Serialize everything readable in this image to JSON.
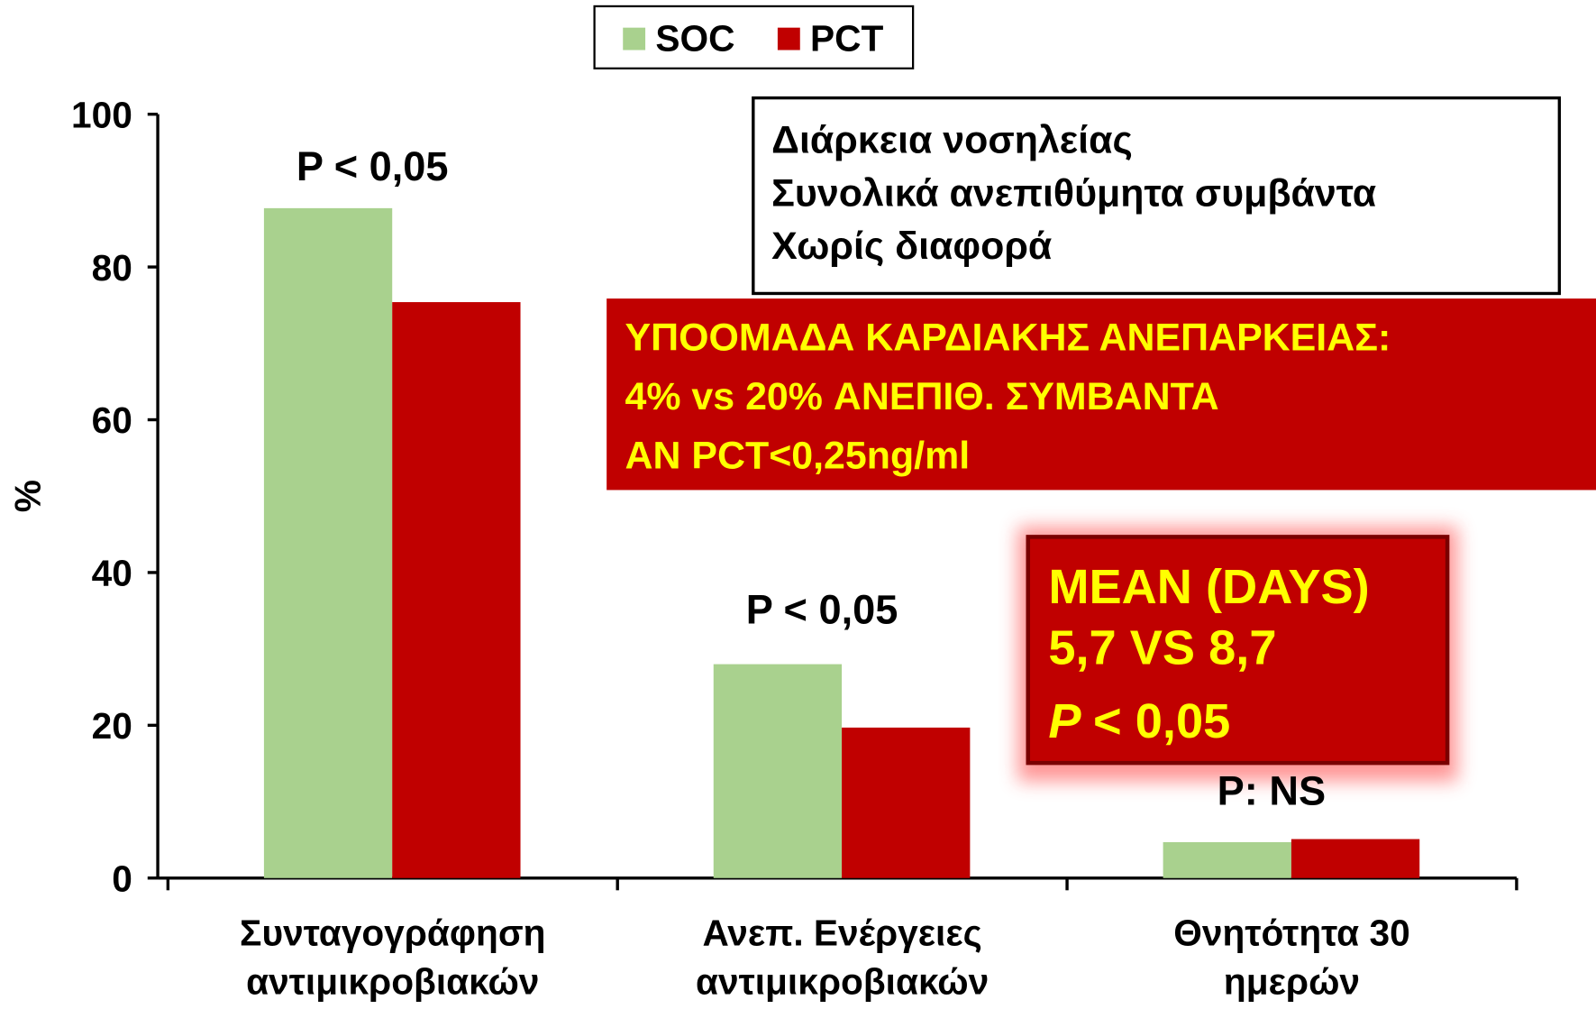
{
  "chart_data": {
    "type": "bar",
    "categories": [
      [
        "Συνταγογράφηση",
        "αντιμικροβιακών"
      ],
      [
        "Ανεπ. Ενέργειες",
        "αντιμικροβιακών"
      ],
      [
        "Θνητότητα 30",
        "ημερών"
      ]
    ],
    "series": [
      {
        "name": "SOC",
        "color": "#a9d18e",
        "values": [
          87.7,
          28,
          4.7
        ]
      },
      {
        "name": "PCT",
        "color": "#c00000",
        "values": [
          75.4,
          19.7,
          5.1
        ]
      }
    ],
    "y_label": "%",
    "ylim": [
      0,
      100
    ],
    "yticks": [
      0,
      20,
      40,
      60,
      80,
      100
    ],
    "annotations": [
      "P < 0,05",
      "P < 0,05",
      "P: NS"
    ],
    "info_box": [
      "Διάρκεια νοσηλείας",
      "Συνολικά ανεπιθύμητα συμβάντα",
      "Χωρίς διαφορά"
    ],
    "subgroup_box": [
      "ΥΠΟΟΜΑΔΑ ΚΑΡΔΙΑΚΗΣ ΑΝΕΠΑΡΚΕΙΑΣ:",
      "4% vs 20% ΑΝΕΠΙΘ. ΣΥΜΒΑΝΤΑ",
      "ΑΝ PCT<0,25ng/ml"
    ],
    "mean_box": {
      "lines": [
        "MEAN (DAYS)",
        "5,7 VS 8,7"
      ],
      "p_line": [
        "P",
        "< 0,05"
      ]
    }
  }
}
